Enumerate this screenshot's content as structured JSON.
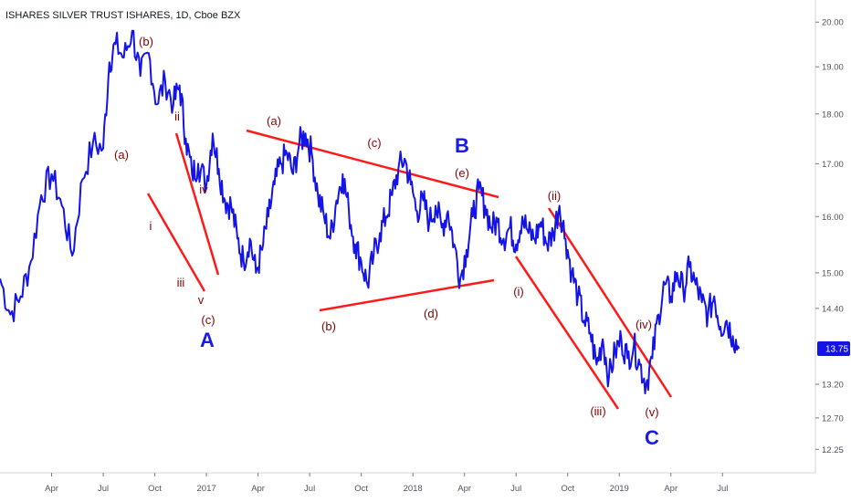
{
  "chart_data": {
    "type": "line",
    "title": "ISHARES SILVER TRUST ISHARES, 1D, Cboe BZX",
    "last_price": "13.75",
    "y_ticks": [
      "20.00",
      "19.00",
      "18.00",
      "17.00",
      "16.00",
      "15.00",
      "14.40",
      "13.75",
      "13.20",
      "12.70",
      "12.25"
    ],
    "x_ticks": [
      "Apr",
      "Jul",
      "Oct",
      "2017",
      "Apr",
      "Jul",
      "Oct",
      "2018",
      "Apr",
      "Jul",
      "Oct",
      "2019",
      "Apr",
      "Jul"
    ],
    "ylim": [
      12.0,
      20.3
    ],
    "log_scale": true,
    "grid": false,
    "colors": {
      "line": "#1414e6",
      "trendline": "#ff1a1a",
      "wave_label": "#8b0000",
      "major_label": "#1a1ae6",
      "price_tag": "#1414e6"
    },
    "series": [
      {
        "values": [
          [
            2016.0,
            14.9
          ],
          [
            2016.05,
            14.3
          ],
          [
            2016.1,
            14.6
          ],
          [
            2016.15,
            15.2
          ],
          [
            2016.2,
            16.4
          ],
          [
            2016.25,
            16.8
          ],
          [
            2016.3,
            16.2
          ],
          [
            2016.35,
            15.3
          ],
          [
            2016.4,
            16.7
          ],
          [
            2016.45,
            17.4
          ],
          [
            2016.5,
            17.3
          ],
          [
            2016.53,
            19.1
          ],
          [
            2016.56,
            19.5
          ],
          [
            2016.6,
            19.2
          ],
          [
            2016.64,
            19.8
          ],
          [
            2016.68,
            18.8
          ],
          [
            2016.72,
            19.3
          ],
          [
            2016.76,
            18.2
          ],
          [
            2016.8,
            18.7
          ],
          [
            2016.84,
            18.2
          ],
          [
            2016.87,
            18.6
          ],
          [
            2016.9,
            17.5
          ],
          [
            2016.93,
            16.8
          ],
          [
            2016.96,
            17.0
          ],
          [
            2017.0,
            16.6
          ],
          [
            2017.03,
            17.6
          ],
          [
            2017.06,
            16.9
          ],
          [
            2017.09,
            16.3
          ],
          [
            2017.12,
            16.2
          ],
          [
            2017.15,
            15.6
          ],
          [
            2017.18,
            15.2
          ],
          [
            2017.21,
            15.6
          ],
          [
            2017.24,
            15.0
          ],
          [
            2017.27,
            15.4
          ],
          [
            2017.3,
            16.0
          ],
          [
            2017.33,
            16.6
          ],
          [
            2017.36,
            17.0
          ],
          [
            2017.39,
            17.2
          ],
          [
            2017.42,
            16.8
          ],
          [
            2017.45,
            17.4
          ],
          [
            2017.48,
            17.6
          ],
          [
            2017.51,
            17.2
          ],
          [
            2017.54,
            16.4
          ],
          [
            2017.57,
            16.0
          ],
          [
            2017.6,
            15.6
          ],
          [
            2017.63,
            16.3
          ],
          [
            2017.66,
            16.8
          ],
          [
            2017.69,
            16.1
          ],
          [
            2017.72,
            15.5
          ],
          [
            2017.75,
            15.2
          ],
          [
            2017.78,
            14.8
          ],
          [
            2017.81,
            15.3
          ],
          [
            2017.84,
            15.7
          ],
          [
            2017.87,
            16.0
          ],
          [
            2017.9,
            16.4
          ],
          [
            2017.93,
            16.9
          ],
          [
            2017.96,
            17.1
          ],
          [
            2017.99,
            16.6
          ],
          [
            2018.02,
            16.1
          ],
          [
            2018.05,
            16.3
          ],
          [
            2018.08,
            15.9
          ],
          [
            2018.11,
            16.2
          ],
          [
            2018.14,
            15.8
          ],
          [
            2018.17,
            16.1
          ],
          [
            2018.2,
            15.5
          ],
          [
            2018.23,
            14.9
          ],
          [
            2018.26,
            15.4
          ],
          [
            2018.29,
            16.0
          ],
          [
            2018.32,
            16.5
          ],
          [
            2018.35,
            16.2
          ],
          [
            2018.38,
            15.8
          ],
          [
            2018.41,
            15.9
          ],
          [
            2018.44,
            15.6
          ],
          [
            2018.47,
            15.8
          ],
          [
            2018.5,
            15.5
          ],
          [
            2018.53,
            16.0
          ],
          [
            2018.56,
            15.7
          ],
          [
            2018.59,
            15.6
          ],
          [
            2018.62,
            15.9
          ],
          [
            2018.65,
            15.5
          ],
          [
            2018.68,
            15.7
          ],
          [
            2018.71,
            16.2
          ],
          [
            2018.74,
            15.6
          ],
          [
            2018.77,
            15.0
          ],
          [
            2018.8,
            14.6
          ],
          [
            2018.83,
            14.2
          ],
          [
            2018.86,
            14.0
          ],
          [
            2018.89,
            13.5
          ],
          [
            2018.92,
            13.9
          ],
          [
            2018.95,
            13.3
          ],
          [
            2018.98,
            13.7
          ],
          [
            2019.01,
            13.9
          ],
          [
            2019.04,
            13.6
          ],
          [
            2019.07,
            13.8
          ],
          [
            2019.1,
            13.5
          ],
          [
            2019.13,
            13.2
          ],
          [
            2019.16,
            13.6
          ],
          [
            2019.19,
            14.3
          ],
          [
            2019.22,
            14.8
          ],
          [
            2019.25,
            14.6
          ],
          [
            2019.28,
            15.0
          ],
          [
            2019.31,
            14.7
          ],
          [
            2019.34,
            15.1
          ],
          [
            2019.37,
            14.8
          ],
          [
            2019.4,
            14.5
          ],
          [
            2019.43,
            14.3
          ],
          [
            2019.46,
            14.6
          ],
          [
            2019.49,
            14.1
          ],
          [
            2019.52,
            14.2
          ],
          [
            2019.55,
            13.95
          ],
          [
            2019.58,
            13.75
          ]
        ]
      }
    ],
    "wave_labels": [
      "(b)",
      "(a)",
      "ii",
      "i",
      "iv",
      "iii",
      "v",
      "(c)",
      "(a)",
      "(c)",
      "(e)",
      "(b)",
      "(d)",
      "(ii)",
      "(i)",
      "(iv)",
      "(iii)",
      "(v)"
    ],
    "major_labels": [
      "A",
      "B",
      "C"
    ]
  }
}
